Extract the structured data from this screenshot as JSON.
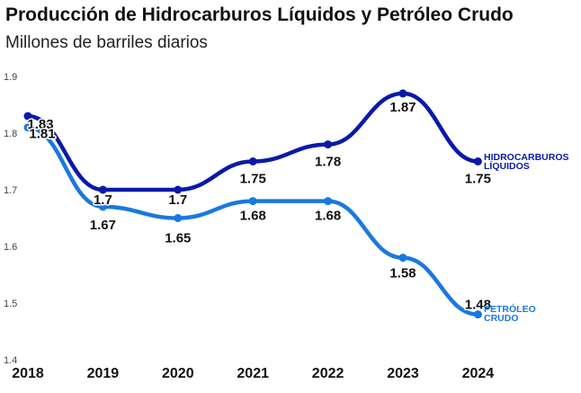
{
  "chart_data": {
    "type": "line",
    "title": "Producción de Hidrocarburos Líquidos y Petróleo Crudo",
    "subtitle": "Millones de barriles diarios",
    "xlabel": "",
    "ylabel": "",
    "x": [
      "2018",
      "2019",
      "2020",
      "2021",
      "2022",
      "2023",
      "2024"
    ],
    "ylim": [
      1.4,
      1.9
    ],
    "yticks": [
      "1.4",
      "1.5",
      "1.6",
      "1.7",
      "1.8",
      "1.9"
    ],
    "grid": false,
    "series": [
      {
        "name": "HIDROCARBUROS LÍQUIDOS",
        "legend_lines": [
          "HIDROCARBUROS",
          "LÍQUIDOS"
        ],
        "values": [
          1.83,
          1.7,
          1.7,
          1.75,
          1.78,
          1.87,
          1.75
        ],
        "labels": [
          "1.83",
          "1.7",
          "1.7",
          "1.75",
          "1.78",
          "1.87",
          "1.75"
        ],
        "color": "#0a1aa8"
      },
      {
        "name": "PETRÓLEO CRUDO",
        "legend_lines": [
          "PETRÓLEO",
          "CRUDO"
        ],
        "values": [
          1.81,
          1.67,
          1.65,
          1.68,
          1.68,
          1.58,
          1.48
        ],
        "labels": [
          "1.81",
          "1.67",
          "1.65",
          "1.68",
          "1.68",
          "1.58",
          "1.48"
        ],
        "color": "#1a78e0"
      }
    ]
  }
}
